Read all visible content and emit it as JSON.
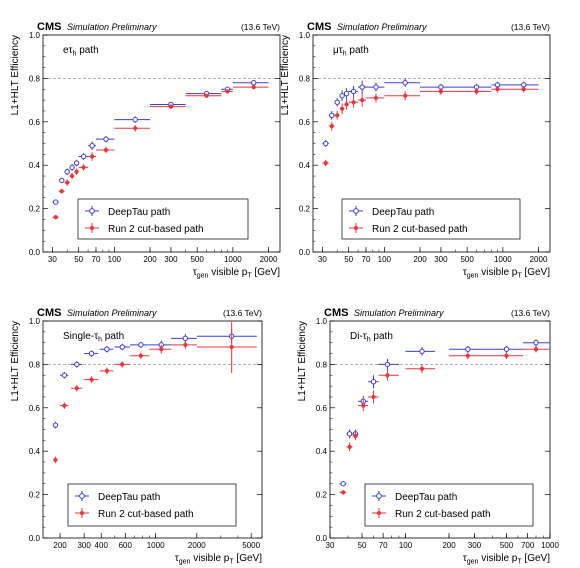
{
  "header": {
    "experiment": "CMS",
    "status": "Simulation Preliminary",
    "energy": "(13.6 TeV)"
  },
  "legend": {
    "deeptau": "DeepTau path",
    "run2": "Run 2 cut-based path"
  },
  "colors": {
    "deeptau": "#3b3bdc",
    "run2": "#e8363b",
    "frame": "#000000",
    "grid": "#9a9a9a"
  },
  "chart_data": [
    {
      "type": "scatter",
      "panel": "top-left",
      "path_label": "eτh path",
      "xlabel": "τgen visible pT [GeV]",
      "ylabel": "L1+HLT Efficiency",
      "xscale": "log",
      "xlim": [
        25,
        2500
      ],
      "ylim": [
        0,
        1.0
      ],
      "xticks": [
        30,
        50,
        70,
        100,
        200,
        300,
        500,
        1000,
        2000
      ],
      "xtick_labels": [
        "30",
        "50",
        "70",
        "100",
        "200",
        "300",
        "500",
        "1000",
        "2000"
      ],
      "yticks": [
        0,
        0.2,
        0.4,
        0.6,
        0.8,
        1.0
      ],
      "ytick_labels": [
        "0.0",
        "0.2",
        "0.4",
        "0.6",
        "0.8",
        "1.0"
      ],
      "grid": "horizontal dashed at 0.8",
      "legend_position": "bottom-center",
      "series": [
        {
          "name": "DeepTau path",
          "points": [
            {
              "x": 32,
              "xlo": 30,
              "xhi": 34,
              "y": 0.23,
              "err": 0.01
            },
            {
              "x": 36,
              "xlo": 34,
              "xhi": 38,
              "y": 0.33,
              "err": 0.01
            },
            {
              "x": 40,
              "xlo": 38,
              "xhi": 42,
              "y": 0.37,
              "err": 0.015
            },
            {
              "x": 44,
              "xlo": 42,
              "xhi": 46,
              "y": 0.39,
              "err": 0.015
            },
            {
              "x": 48,
              "xlo": 46,
              "xhi": 50,
              "y": 0.41,
              "err": 0.015
            },
            {
              "x": 55,
              "xlo": 50,
              "xhi": 60,
              "y": 0.44,
              "err": 0.015
            },
            {
              "x": 65,
              "xlo": 60,
              "xhi": 70,
              "y": 0.49,
              "err": 0.02
            },
            {
              "x": 85,
              "xlo": 70,
              "xhi": 100,
              "y": 0.52,
              "err": 0.015
            },
            {
              "x": 150,
              "xlo": 100,
              "xhi": 200,
              "y": 0.61,
              "err": 0.015
            },
            {
              "x": 300,
              "xlo": 200,
              "xhi": 400,
              "y": 0.68,
              "err": 0.01
            },
            {
              "x": 600,
              "xlo": 400,
              "xhi": 800,
              "y": 0.73,
              "err": 0.01
            },
            {
              "x": 900,
              "xlo": 800,
              "xhi": 1000,
              "y": 0.75,
              "err": 0.01
            },
            {
              "x": 1500,
              "xlo": 1000,
              "xhi": 2000,
              "y": 0.78,
              "err": 0.01
            }
          ]
        },
        {
          "name": "Run 2 cut-based path",
          "points": [
            {
              "x": 32,
              "xlo": 30,
              "xhi": 34,
              "y": 0.16,
              "err": 0.01
            },
            {
              "x": 36,
              "xlo": 34,
              "xhi": 38,
              "y": 0.28,
              "err": 0.01
            },
            {
              "x": 40,
              "xlo": 38,
              "xhi": 42,
              "y": 0.32,
              "err": 0.015
            },
            {
              "x": 44,
              "xlo": 42,
              "xhi": 46,
              "y": 0.35,
              "err": 0.015
            },
            {
              "x": 48,
              "xlo": 46,
              "xhi": 50,
              "y": 0.37,
              "err": 0.015
            },
            {
              "x": 55,
              "xlo": 50,
              "xhi": 60,
              "y": 0.39,
              "err": 0.015
            },
            {
              "x": 65,
              "xlo": 60,
              "xhi": 70,
              "y": 0.44,
              "err": 0.02
            },
            {
              "x": 85,
              "xlo": 70,
              "xhi": 100,
              "y": 0.47,
              "err": 0.015
            },
            {
              "x": 150,
              "xlo": 100,
              "xhi": 200,
              "y": 0.57,
              "err": 0.015
            },
            {
              "x": 300,
              "xlo": 200,
              "xhi": 400,
              "y": 0.67,
              "err": 0.01
            },
            {
              "x": 600,
              "xlo": 400,
              "xhi": 800,
              "y": 0.72,
              "err": 0.01
            },
            {
              "x": 900,
              "xlo": 800,
              "xhi": 1000,
              "y": 0.74,
              "err": 0.01
            },
            {
              "x": 1500,
              "xlo": 1000,
              "xhi": 2000,
              "y": 0.76,
              "err": 0.01
            }
          ]
        }
      ]
    },
    {
      "type": "scatter",
      "panel": "top-right",
      "path_label": "μτh path",
      "xlabel": "τgen visible pT [GeV]",
      "ylabel": "L1+HLT Efficiency",
      "xscale": "log",
      "xlim": [
        25,
        2500
      ],
      "ylim": [
        0,
        1.0
      ],
      "xticks": [
        30,
        50,
        70,
        100,
        200,
        300,
        500,
        1000,
        2000
      ],
      "xtick_labels": [
        "30",
        "50",
        "70",
        "100",
        "200",
        "300",
        "500",
        "1000",
        "2000"
      ],
      "yticks": [
        0,
        0.2,
        0.4,
        0.6,
        0.8,
        1.0
      ],
      "ytick_labels": [
        "0.0",
        "0.2",
        "0.4",
        "0.6",
        "0.8",
        "1.0"
      ],
      "grid": "horizontal dashed at 0.8",
      "legend_position": "bottom-center",
      "series": [
        {
          "name": "DeepTau path",
          "points": [
            {
              "x": 32,
              "xlo": 30,
              "xhi": 34,
              "y": 0.5,
              "err": 0.015
            },
            {
              "x": 36,
              "xlo": 34,
              "xhi": 38,
              "y": 0.63,
              "err": 0.02
            },
            {
              "x": 40,
              "xlo": 38,
              "xhi": 42,
              "y": 0.69,
              "err": 0.02
            },
            {
              "x": 44,
              "xlo": 42,
              "xhi": 46,
              "y": 0.72,
              "err": 0.025
            },
            {
              "x": 48,
              "xlo": 46,
              "xhi": 50,
              "y": 0.73,
              "err": 0.025
            },
            {
              "x": 55,
              "xlo": 50,
              "xhi": 60,
              "y": 0.74,
              "err": 0.025
            },
            {
              "x": 65,
              "xlo": 60,
              "xhi": 70,
              "y": 0.76,
              "err": 0.03
            },
            {
              "x": 85,
              "xlo": 70,
              "xhi": 100,
              "y": 0.76,
              "err": 0.02
            },
            {
              "x": 150,
              "xlo": 100,
              "xhi": 200,
              "y": 0.78,
              "err": 0.02
            },
            {
              "x": 300,
              "xlo": 200,
              "xhi": 400,
              "y": 0.76,
              "err": 0.015
            },
            {
              "x": 600,
              "xlo": 400,
              "xhi": 800,
              "y": 0.76,
              "err": 0.015
            },
            {
              "x": 900,
              "xlo": 800,
              "xhi": 1000,
              "y": 0.77,
              "err": 0.015
            },
            {
              "x": 1500,
              "xlo": 1000,
              "xhi": 2000,
              "y": 0.77,
              "err": 0.015
            }
          ]
        },
        {
          "name": "Run 2 cut-based path",
          "points": [
            {
              "x": 32,
              "xlo": 30,
              "xhi": 34,
              "y": 0.41,
              "err": 0.015
            },
            {
              "x": 36,
              "xlo": 34,
              "xhi": 38,
              "y": 0.58,
              "err": 0.02
            },
            {
              "x": 40,
              "xlo": 38,
              "xhi": 42,
              "y": 0.63,
              "err": 0.02
            },
            {
              "x": 44,
              "xlo": 42,
              "xhi": 46,
              "y": 0.66,
              "err": 0.025
            },
            {
              "x": 48,
              "xlo": 46,
              "xhi": 50,
              "y": 0.68,
              "err": 0.025
            },
            {
              "x": 55,
              "xlo": 50,
              "xhi": 60,
              "y": 0.69,
              "err": 0.025
            },
            {
              "x": 65,
              "xlo": 60,
              "xhi": 70,
              "y": 0.7,
              "err": 0.03
            },
            {
              "x": 85,
              "xlo": 70,
              "xhi": 100,
              "y": 0.71,
              "err": 0.02
            },
            {
              "x": 150,
              "xlo": 100,
              "xhi": 200,
              "y": 0.72,
              "err": 0.02
            },
            {
              "x": 300,
              "xlo": 200,
              "xhi": 400,
              "y": 0.74,
              "err": 0.015
            },
            {
              "x": 600,
              "xlo": 400,
              "xhi": 800,
              "y": 0.74,
              "err": 0.015
            },
            {
              "x": 900,
              "xlo": 800,
              "xhi": 1000,
              "y": 0.75,
              "err": 0.015
            },
            {
              "x": 1500,
              "xlo": 1000,
              "xhi": 2000,
              "y": 0.75,
              "err": 0.015
            }
          ]
        }
      ]
    },
    {
      "type": "scatter",
      "panel": "bottom-left",
      "path_label": "Single-τh path",
      "xlabel": "τgen visible pT [GeV]",
      "ylabel": "L1+HLT Efficiency",
      "xscale": "log",
      "xlim": [
        150,
        6000
      ],
      "ylim": [
        0,
        1.0
      ],
      "xticks": [
        200,
        300,
        400,
        600,
        1000,
        2000,
        5000
      ],
      "xtick_labels": [
        "200",
        "300",
        "400",
        "600",
        "1000",
        "2000",
        "5000"
      ],
      "yticks": [
        0,
        0.2,
        0.4,
        0.6,
        0.8,
        1.0
      ],
      "ytick_labels": [
        "0.0",
        "0.2",
        "0.4",
        "0.6",
        "0.8",
        "1.0"
      ],
      "grid": "horizontal dashed at 0.8",
      "legend_position": "bottom-center",
      "series": [
        {
          "name": "DeepTau path",
          "points": [
            {
              "x": 185,
              "xlo": 180,
              "xhi": 190,
              "y": 0.52,
              "err": 0.015
            },
            {
              "x": 215,
              "xlo": 200,
              "xhi": 230,
              "y": 0.75,
              "err": 0.015
            },
            {
              "x": 265,
              "xlo": 240,
              "xhi": 290,
              "y": 0.8,
              "err": 0.015
            },
            {
              "x": 340,
              "xlo": 300,
              "xhi": 380,
              "y": 0.85,
              "err": 0.015
            },
            {
              "x": 440,
              "xlo": 390,
              "xhi": 490,
              "y": 0.87,
              "err": 0.015
            },
            {
              "x": 570,
              "xlo": 500,
              "xhi": 650,
              "y": 0.88,
              "err": 0.015
            },
            {
              "x": 780,
              "xlo": 650,
              "xhi": 900,
              "y": 0.89,
              "err": 0.015
            },
            {
              "x": 1100,
              "xlo": 900,
              "xhi": 1300,
              "y": 0.89,
              "err": 0.02
            },
            {
              "x": 1650,
              "xlo": 1300,
              "xhi": 2000,
              "y": 0.92,
              "err": 0.02
            },
            {
              "x": 3600,
              "xlo": 2000,
              "xhi": 5500,
              "y": 0.93,
              "err": 0.03
            }
          ]
        },
        {
          "name": "Run 2 cut-based path",
          "points": [
            {
              "x": 185,
              "xlo": 180,
              "xhi": 190,
              "y": 0.36,
              "err": 0.015
            },
            {
              "x": 215,
              "xlo": 200,
              "xhi": 230,
              "y": 0.61,
              "err": 0.015
            },
            {
              "x": 265,
              "xlo": 240,
              "xhi": 290,
              "y": 0.69,
              "err": 0.015
            },
            {
              "x": 340,
              "xlo": 300,
              "xhi": 380,
              "y": 0.73,
              "err": 0.015
            },
            {
              "x": 440,
              "xlo": 390,
              "xhi": 490,
              "y": 0.77,
              "err": 0.015
            },
            {
              "x": 570,
              "xlo": 500,
              "xhi": 650,
              "y": 0.8,
              "err": 0.015
            },
            {
              "x": 780,
              "xlo": 650,
              "xhi": 900,
              "y": 0.84,
              "err": 0.015
            },
            {
              "x": 1100,
              "xlo": 900,
              "xhi": 1300,
              "y": 0.87,
              "err": 0.02
            },
            {
              "x": 1650,
              "xlo": 1300,
              "xhi": 2000,
              "y": 0.89,
              "err": 0.02
            },
            {
              "x": 3600,
              "xlo": 2000,
              "xhi": 5500,
              "y": 0.88,
              "err": 0.12
            }
          ]
        }
      ]
    },
    {
      "type": "scatter",
      "panel": "bottom-right",
      "path_label": "Di-τh path",
      "xlabel": "τgen visible pT [GeV]",
      "ylabel": "L1+HLT Efficiency",
      "xscale": "log",
      "xlim": [
        30,
        1000
      ],
      "ylim": [
        0,
        1.0
      ],
      "xticks": [
        30,
        50,
        70,
        100,
        200,
        300,
        500,
        700,
        1000
      ],
      "xtick_labels": [
        "30",
        "50",
        "70",
        "100",
        "200",
        "300",
        "500",
        "700",
        "1000"
      ],
      "yticks": [
        0,
        0.2,
        0.4,
        0.6,
        0.8,
        1.0
      ],
      "ytick_labels": [
        "0.0",
        "0.2",
        "0.4",
        "0.6",
        "0.8",
        "1.0"
      ],
      "grid": "horizontal dashed at 0.8",
      "legend_position": "bottom-center",
      "series": [
        {
          "name": "DeepTau path",
          "points": [
            {
              "x": 37,
              "xlo": 35,
              "xhi": 39,
              "y": 0.25,
              "err": 0.01
            },
            {
              "x": 41,
              "xlo": 39,
              "xhi": 43,
              "y": 0.48,
              "err": 0.02
            },
            {
              "x": 45,
              "xlo": 43,
              "xhi": 47,
              "y": 0.48,
              "err": 0.02
            },
            {
              "x": 51,
              "xlo": 47,
              "xhi": 55,
              "y": 0.63,
              "err": 0.025
            },
            {
              "x": 60,
              "xlo": 55,
              "xhi": 65,
              "y": 0.72,
              "err": 0.03
            },
            {
              "x": 75,
              "xlo": 65,
              "xhi": 90,
              "y": 0.8,
              "err": 0.025
            },
            {
              "x": 130,
              "xlo": 100,
              "xhi": 160,
              "y": 0.86,
              "err": 0.02
            },
            {
              "x": 270,
              "xlo": 200,
              "xhi": 350,
              "y": 0.87,
              "err": 0.015
            },
            {
              "x": 500,
              "xlo": 350,
              "xhi": 650,
              "y": 0.87,
              "err": 0.015
            },
            {
              "x": 800,
              "xlo": 650,
              "xhi": 1000,
              "y": 0.9,
              "err": 0.015
            }
          ]
        },
        {
          "name": "Run 2 cut-based path",
          "points": [
            {
              "x": 37,
              "xlo": 35,
              "xhi": 39,
              "y": 0.21,
              "err": 0.01
            },
            {
              "x": 41,
              "xlo": 39,
              "xhi": 43,
              "y": 0.42,
              "err": 0.02
            },
            {
              "x": 45,
              "xlo": 43,
              "xhi": 47,
              "y": 0.47,
              "err": 0.02
            },
            {
              "x": 51,
              "xlo": 47,
              "xhi": 55,
              "y": 0.61,
              "err": 0.025
            },
            {
              "x": 60,
              "xlo": 55,
              "xhi": 65,
              "y": 0.65,
              "err": 0.03
            },
            {
              "x": 75,
              "xlo": 65,
              "xhi": 90,
              "y": 0.75,
              "err": 0.025
            },
            {
              "x": 130,
              "xlo": 100,
              "xhi": 160,
              "y": 0.78,
              "err": 0.02
            },
            {
              "x": 270,
              "xlo": 200,
              "xhi": 350,
              "y": 0.84,
              "err": 0.015
            },
            {
              "x": 500,
              "xlo": 350,
              "xhi": 650,
              "y": 0.84,
              "err": 0.015
            },
            {
              "x": 800,
              "xlo": 650,
              "xhi": 1000,
              "y": 0.87,
              "err": 0.015
            }
          ]
        }
      ]
    }
  ]
}
